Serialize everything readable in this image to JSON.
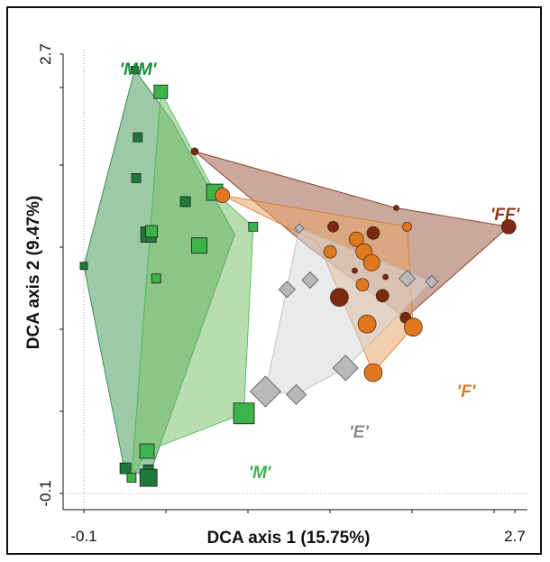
{
  "chart_data": {
    "type": "scatter",
    "title": "",
    "xlabel": "DCA axis 1 (15.75%)",
    "ylabel": "DCA axis 2 (9.47%)",
    "xlim": [
      -0.1,
      2.7
    ],
    "ylim": [
      -0.1,
      2.7
    ],
    "x_ticks": [
      "-0.1",
      "2.7"
    ],
    "y_ticks": [
      "-0.1",
      "2.7"
    ],
    "grid": false,
    "zero_reference_lines": true,
    "legend": "none",
    "groups": [
      {
        "label": "'MM'",
        "shape": "square",
        "fill": "#1e7a3c",
        "hull_fill": "#4a9e5c",
        "label_color": "#1e8a3c",
        "hull": [
          [
            0.23,
            2.6
          ],
          [
            0.47,
            2.28
          ],
          [
            0.88,
            1.55
          ],
          [
            0.32,
            0.0
          ],
          [
            0.16,
            0.07
          ],
          [
            -0.1,
            1.35
          ]
        ],
        "points": [
          {
            "x": 0.23,
            "y": 2.6,
            "size": 8
          },
          {
            "x": 0.25,
            "y": 2.17,
            "size": 10
          },
          {
            "x": 0.24,
            "y": 1.91,
            "size": 10
          },
          {
            "x": 0.56,
            "y": 1.76,
            "size": 11
          },
          {
            "x": 0.32,
            "y": 1.55,
            "size": 17
          },
          {
            "x": -0.1,
            "y": 1.35,
            "size": 8
          },
          {
            "x": 0.17,
            "y": 0.06,
            "size": 12
          },
          {
            "x": 0.32,
            "y": 0.05,
            "size": 11
          },
          {
            "x": 0.32,
            "y": 0.0,
            "size": 19
          }
        ]
      },
      {
        "label": "'M'",
        "shape": "square",
        "fill": "#3cb44a",
        "hull_fill": "#7dc36e",
        "label_color": "#3cb44a",
        "hull": [
          [
            0.4,
            2.46
          ],
          [
            0.75,
            1.82
          ],
          [
            1.0,
            1.6
          ],
          [
            0.94,
            0.41
          ],
          [
            0.31,
            0.17
          ],
          [
            0.21,
            0.0
          ]
        ],
        "points": [
          {
            "x": 0.4,
            "y": 2.46,
            "size": 15
          },
          {
            "x": 0.75,
            "y": 1.82,
            "size": 18
          },
          {
            "x": 0.34,
            "y": 1.57,
            "size": 13
          },
          {
            "x": 1.0,
            "y": 1.6,
            "size": 10
          },
          {
            "x": 0.65,
            "y": 1.48,
            "size": 17
          },
          {
            "x": 0.37,
            "y": 1.27,
            "size": 10
          },
          {
            "x": 0.94,
            "y": 0.41,
            "size": 23
          },
          {
            "x": 0.31,
            "y": 0.17,
            "size": 16
          },
          {
            "x": 0.21,
            "y": 0.0,
            "size": 10
          }
        ]
      },
      {
        "label": "'FF'",
        "shape": "circle",
        "fill": "#7a2a10",
        "hull_fill": "#a0614a",
        "label_color": "#8a3a1a",
        "hull": [
          [
            0.62,
            2.08
          ],
          [
            1.93,
            1.72
          ],
          [
            2.66,
            1.6
          ],
          [
            1.99,
            1.02
          ],
          [
            1.36,
            1.47
          ]
        ],
        "points": [
          {
            "x": 0.62,
            "y": 2.08,
            "size": 4
          },
          {
            "x": 1.93,
            "y": 1.72,
            "size": 3
          },
          {
            "x": 2.66,
            "y": 1.6,
            "size": 8
          },
          {
            "x": 1.52,
            "y": 1.6,
            "size": 6
          },
          {
            "x": 1.78,
            "y": 1.56,
            "size": 7
          },
          {
            "x": 1.66,
            "y": 1.32,
            "size": 3
          },
          {
            "x": 1.86,
            "y": 1.28,
            "size": 3
          },
          {
            "x": 1.84,
            "y": 1.16,
            "size": 7
          },
          {
            "x": 1.99,
            "y": 1.02,
            "size": 6
          },
          {
            "x": 1.56,
            "y": 1.15,
            "size": 10
          }
        ]
      },
      {
        "label": "'F'",
        "shape": "circle",
        "fill": "#e07820",
        "hull_fill": "#e8a56a",
        "label_color": "#e07820",
        "hull": [
          [
            0.8,
            1.8
          ],
          [
            2.0,
            1.6
          ],
          [
            2.04,
            0.96
          ],
          [
            1.78,
            0.67
          ],
          [
            1.42,
            1.5
          ]
        ],
        "points": [
          {
            "x": 0.8,
            "y": 1.8,
            "size": 8
          },
          {
            "x": 2.0,
            "y": 1.6,
            "size": 5
          },
          {
            "x": 1.67,
            "y": 1.52,
            "size": 8
          },
          {
            "x": 1.5,
            "y": 1.44,
            "size": 7
          },
          {
            "x": 1.72,
            "y": 1.44,
            "size": 9
          },
          {
            "x": 1.77,
            "y": 1.37,
            "size": 9
          },
          {
            "x": 1.71,
            "y": 1.23,
            "size": 7
          },
          {
            "x": 1.74,
            "y": 0.98,
            "size": 10
          },
          {
            "x": 2.04,
            "y": 0.96,
            "size": 10
          },
          {
            "x": 1.78,
            "y": 0.67,
            "size": 10
          }
        ]
      },
      {
        "label": "'E'",
        "shape": "diamond",
        "fill": "#b8b8b8",
        "hull_fill": "#d8d8d8",
        "label_color": "#8a8a8a",
        "hull": [
          [
            1.3,
            1.59
          ],
          [
            2.16,
            1.25
          ],
          [
            1.6,
            0.7
          ],
          [
            1.28,
            0.53
          ],
          [
            1.08,
            0.55
          ]
        ],
        "points": [
          {
            "x": 1.3,
            "y": 1.59,
            "size": 5
          },
          {
            "x": 1.37,
            "y": 1.26,
            "size": 9
          },
          {
            "x": 1.22,
            "y": 1.2,
            "size": 9
          },
          {
            "x": 2.0,
            "y": 1.27,
            "size": 9
          },
          {
            "x": 2.16,
            "y": 1.25,
            "size": 7
          },
          {
            "x": 1.6,
            "y": 0.7,
            "size": 14
          },
          {
            "x": 1.28,
            "y": 0.53,
            "size": 11
          },
          {
            "x": 1.08,
            "y": 0.55,
            "size": 17
          }
        ]
      }
    ]
  }
}
